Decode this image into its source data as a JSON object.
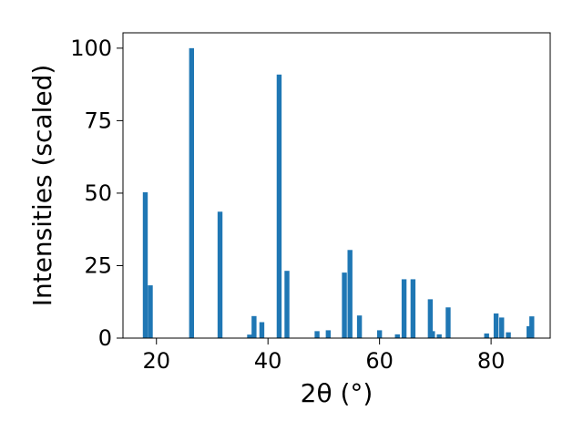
{
  "chart_data": {
    "type": "bar",
    "xlabel": "2θ (°)",
    "ylabel": "Intensities (scaled)",
    "xlim": [
      14,
      90.6
    ],
    "ylim": [
      0,
      105.3
    ],
    "xticks": [
      20,
      40,
      60,
      80
    ],
    "yticks": [
      0,
      25,
      50,
      75,
      100
    ],
    "bar_color": "#1f77b4",
    "grid": false,
    "legend": "none",
    "x": [
      18.0,
      18.9,
      26.3,
      31.4,
      36.7,
      37.5,
      38.9,
      42.0,
      43.4,
      48.8,
      50.8,
      53.7,
      54.7,
      56.4,
      60.0,
      63.2,
      64.4,
      66.0,
      69.1,
      69.5,
      70.7,
      72.3,
      79.2,
      80.9,
      81.9,
      83.1,
      86.8,
      87.3
    ],
    "values": [
      50.3,
      18.2,
      100.0,
      43.6,
      1.2,
      7.6,
      5.5,
      90.9,
      23.2,
      2.4,
      2.7,
      22.6,
      30.4,
      7.8,
      2.7,
      1.3,
      20.3,
      20.3,
      13.4,
      2.4,
      1.3,
      10.6,
      1.6,
      8.5,
      7.1,
      2.0,
      4.1,
      7.5
    ]
  }
}
